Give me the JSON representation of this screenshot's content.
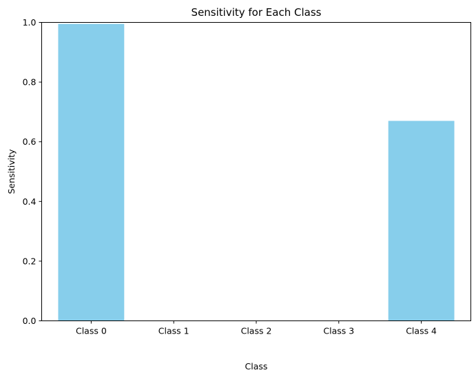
{
  "chart_data": {
    "type": "bar",
    "title": "Sensitivity for Each Class",
    "xlabel": "Class",
    "ylabel": "Sensitivity",
    "categories": [
      "Class 0",
      "Class 1",
      "Class 2",
      "Class 3",
      "Class 4"
    ],
    "values": [
      0.995,
      0.0,
      0.0,
      0.0,
      0.67
    ],
    "ylim": [
      0,
      1.0
    ],
    "yticks": [
      "0.0",
      "0.2",
      "0.4",
      "0.6",
      "0.8",
      "1.0"
    ],
    "grid": false,
    "bar_color": "#87ceeb"
  }
}
